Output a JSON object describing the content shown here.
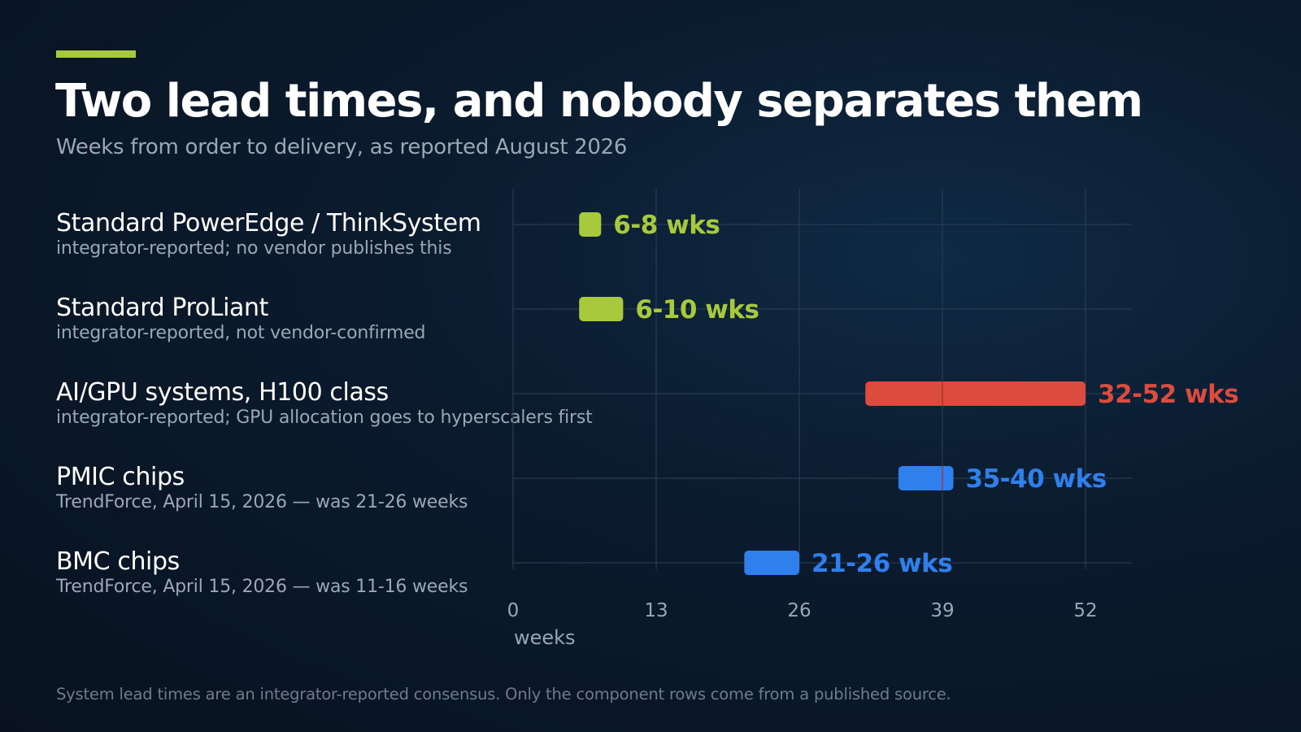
{
  "header": {
    "title": "Two lead times, and nobody separates them",
    "subtitle": "Weeks from order to delivery, as reported August 2026"
  },
  "footnote": "System lead times are an integrator-reported consensus. Only the component rows come from a published source.",
  "colors": {
    "accent": "#a8c93c",
    "system": "#a8c93c",
    "gpu": "#dc4c3e",
    "component": "#2f80ed"
  },
  "chart_data": {
    "type": "bar",
    "orientation": "horizontal-range",
    "title": "Two lead times, and nobody separates them",
    "subtitle": "Weeks from order to delivery, as reported August 2026",
    "xlabel": "weeks",
    "xlim": [
      0,
      52
    ],
    "xticks": [
      "0",
      "13",
      "26",
      "39",
      "52"
    ],
    "xtick_values": [
      0,
      13,
      26,
      39,
      52
    ],
    "grid": true,
    "rows": [
      {
        "label": "Standard PowerEdge / ThinkSystem",
        "note": "integrator-reported; no vendor publishes this",
        "range": [
          6,
          8
        ],
        "value_label": "6-8 wks",
        "color": "#a8c93c"
      },
      {
        "label": "Standard ProLiant",
        "note": "integrator-reported, not vendor-confirmed",
        "range": [
          6,
          10
        ],
        "value_label": "6-10 wks",
        "color": "#a8c93c"
      },
      {
        "label": "AI/GPU systems, H100 class",
        "note": "integrator-reported; GPU allocation goes to hyperscalers first",
        "range": [
          32,
          52
        ],
        "value_label": "32-52 wks",
        "color": "#dc4c3e"
      },
      {
        "label": "PMIC chips",
        "note": "TrendForce, April 15, 2026 — was 21-26 weeks",
        "range": [
          35,
          40
        ],
        "value_label": "35-40 wks",
        "color": "#2f80ed"
      },
      {
        "label": "BMC chips",
        "note": "TrendForce, April 15, 2026 — was 11-16 weeks",
        "range": [
          21,
          26
        ],
        "value_label": "21-26 wks",
        "color": "#2f80ed"
      }
    ]
  }
}
